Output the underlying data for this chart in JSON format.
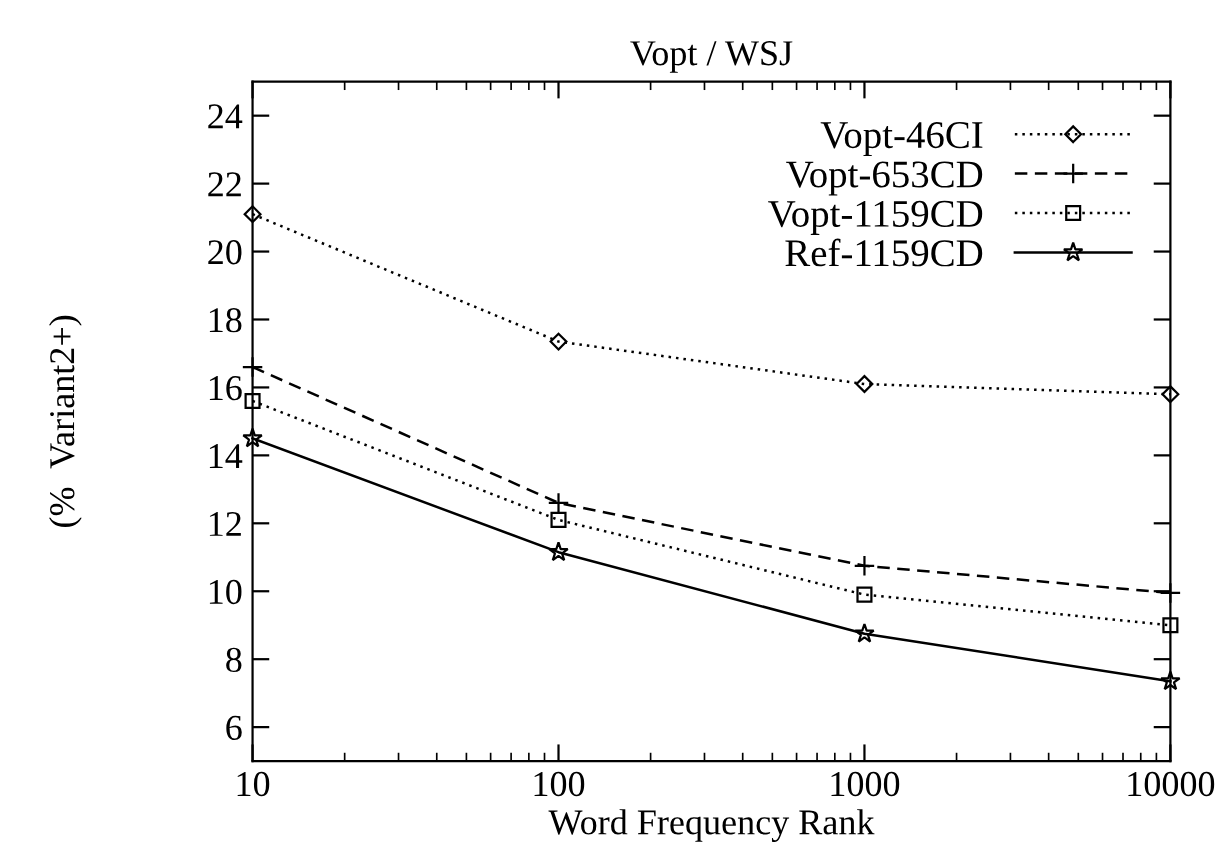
{
  "chart_data": {
    "type": "line",
    "title": "Vopt / WSJ",
    "xlabel": "Word Frequency Rank",
    "ylabel": "(%  Variant2+)",
    "x": [
      10,
      100,
      1000,
      10000
    ],
    "log": "x",
    "xlim": [
      10,
      10000
    ],
    "xticks": [
      10,
      100,
      1000,
      10000
    ],
    "ylim": [
      5,
      25
    ],
    "yticks": [
      6,
      8,
      10,
      12,
      14,
      16,
      18,
      20,
      22,
      24
    ],
    "grid": false,
    "legend": "top right",
    "series": [
      {
        "name": "Vopt-46CI",
        "color": "#000000",
        "marker": "diamond",
        "line_style": "dotted",
        "values": [
          21.1,
          17.35,
          16.1,
          15.8
        ]
      },
      {
        "name": "Vopt-653CD",
        "color": "#000000",
        "marker": "cross",
        "line_style": "dashed",
        "values": [
          16.6,
          12.6,
          10.75,
          9.95
        ]
      },
      {
        "name": "Vopt-1159CD",
        "color": "#000000",
        "marker": "square",
        "line_style": "dotted",
        "values": [
          15.6,
          12.1,
          9.9,
          9.0
        ]
      },
      {
        "name": "Ref-1159CD",
        "color": "#000000",
        "marker": "star",
        "line_style": "solid",
        "values": [
          14.5,
          11.15,
          8.75,
          7.35
        ]
      }
    ]
  }
}
